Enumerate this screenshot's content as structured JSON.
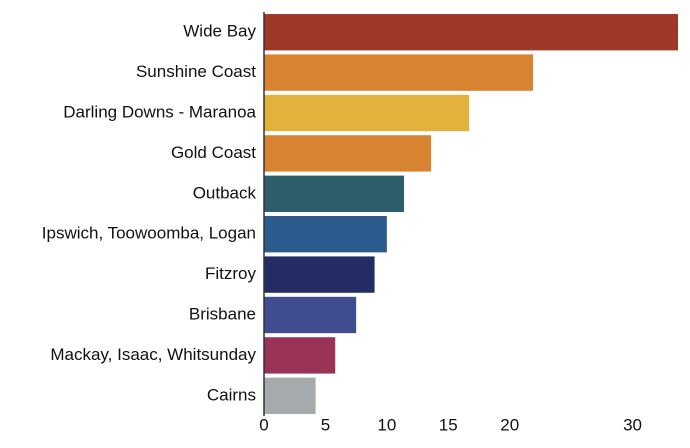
{
  "chart_data": {
    "type": "bar",
    "orientation": "horizontal",
    "categories": [
      "Wide Bay",
      "Sunshine Coast",
      "Darling Downs - Maranoa",
      "Gold Coast",
      "Outback",
      "Ipswich, Toowoomba, Logan",
      "Fitzroy",
      "Brisbane",
      "Mackay, Isaac, Whitsunday",
      "Cairns"
    ],
    "values": [
      33.7,
      21.9,
      16.7,
      13.6,
      11.4,
      10.0,
      9.0,
      7.5,
      5.8,
      4.2
    ],
    "colors": [
      "#a0382a",
      "#d8832f",
      "#e3b23c",
      "#d8832f",
      "#2c5d6b",
      "#2b5a8c",
      "#232c64",
      "#3f4c90",
      "#9a3358",
      "#a7aaac"
    ],
    "xlim": [
      0,
      33.7
    ],
    "xticks": [
      0,
      5,
      10,
      15,
      20,
      30
    ],
    "grid": false
  }
}
